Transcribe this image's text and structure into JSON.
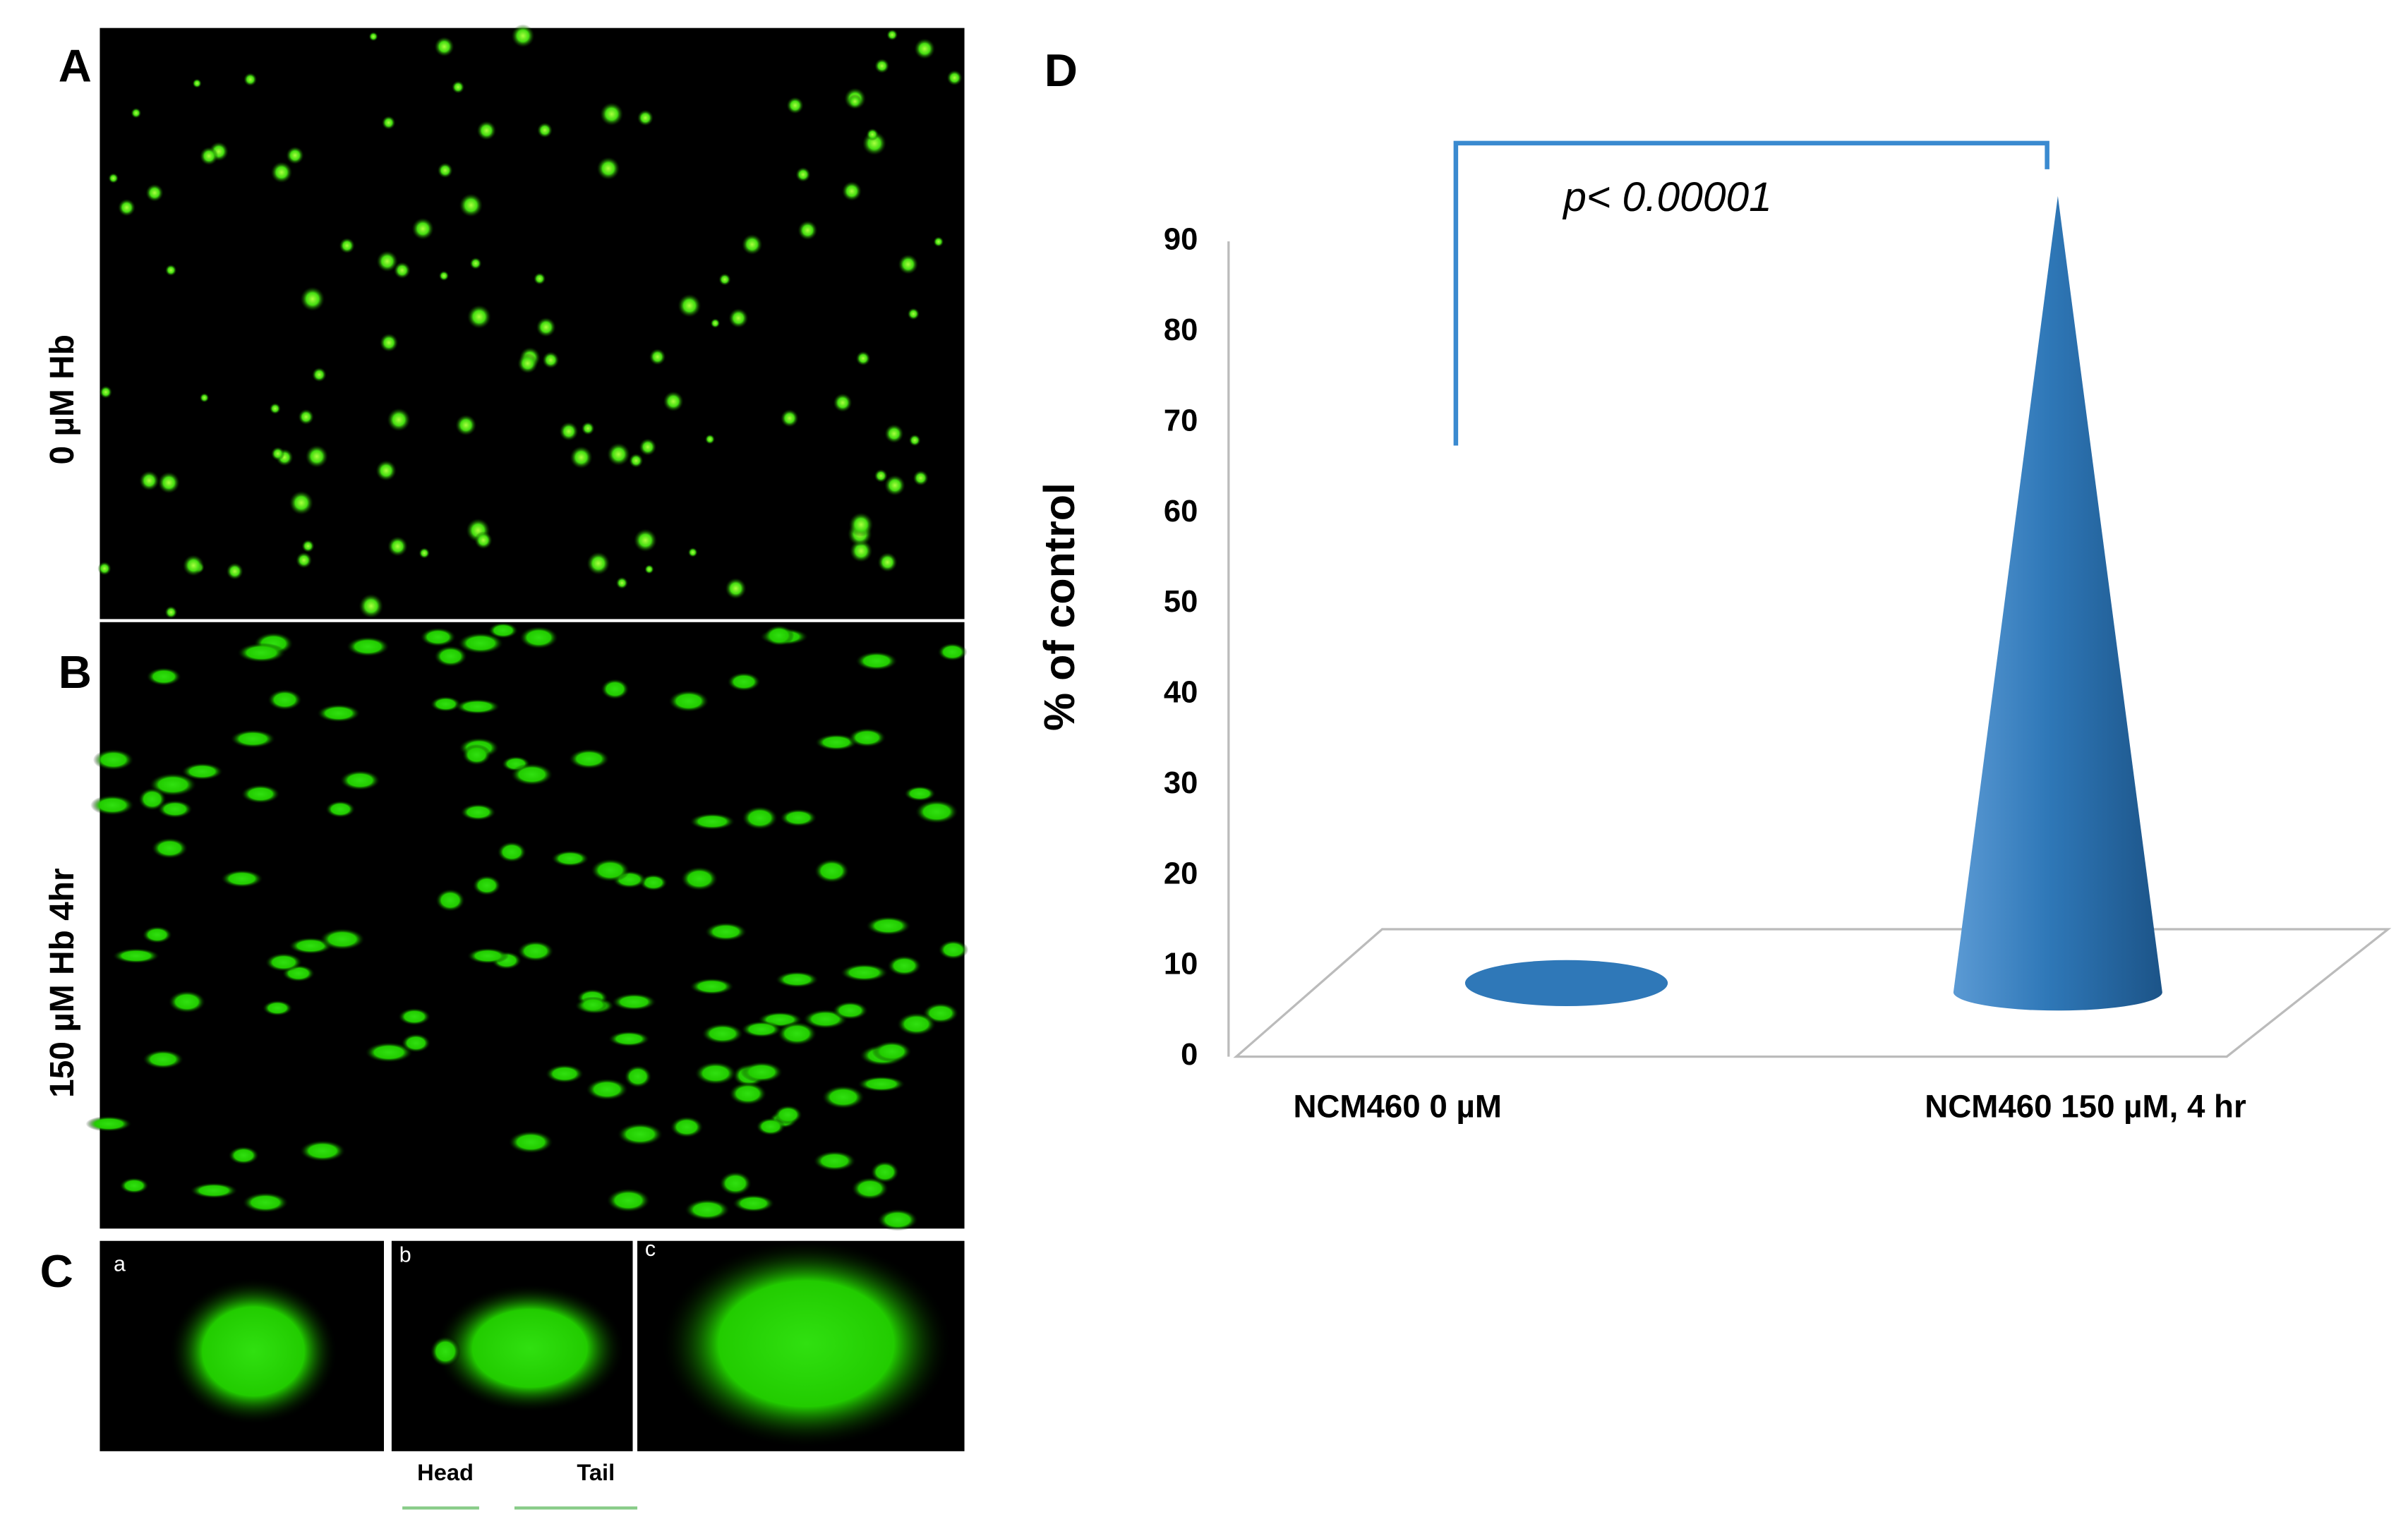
{
  "figure_panels": {
    "panel_a": {
      "letter": "A",
      "label": "0 µM Hb"
    },
    "panel_b": {
      "letter": "B",
      "label": "150 µM Hb 4hr"
    },
    "panel_c": {
      "letter": "C",
      "subpanels": [
        "a",
        "b",
        "c"
      ],
      "head": "Head",
      "tail": "Tail"
    },
    "panel_d": {
      "letter": "D"
    }
  },
  "chart_data": {
    "type": "cone",
    "ylabel": "% of control",
    "annotation": "p< 0.00001",
    "categories": [
      "NCM460 0 µM",
      "NCM460 150 µM, 4 hr"
    ],
    "values": [
      1,
      95
    ],
    "color": "#2f78b8",
    "ylim": [
      0,
      90
    ],
    "yticks": [
      0,
      10,
      20,
      30,
      40,
      50,
      60,
      70,
      80,
      90
    ]
  }
}
